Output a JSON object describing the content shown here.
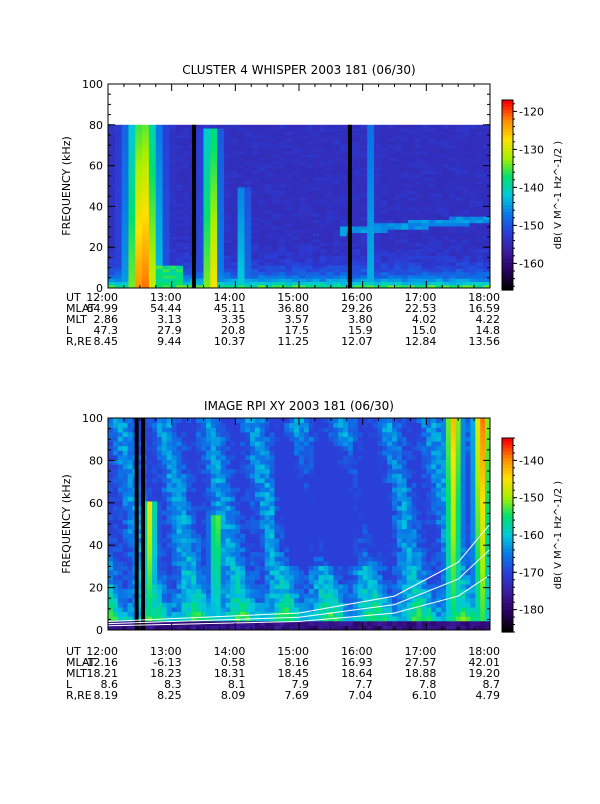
{
  "colormap": [
    "#000000",
    "#2a0060",
    "#3a1c9c",
    "#2a3ed8",
    "#0a78e8",
    "#00c8dc",
    "#00e070",
    "#a8f000",
    "#ffe000",
    "#ff8c00",
    "#ff0000"
  ],
  "chart_data": [
    {
      "type": "heatmap",
      "title": "CLUSTER 4 WHISPER 2003 181 (06/30)",
      "ylabel": "FREQUENCY (kHz)",
      "ylim": [
        0,
        100
      ],
      "yticks": [
        0,
        20,
        40,
        60,
        80,
        100
      ],
      "y_data_max": 80,
      "xlim": [
        12,
        18
      ],
      "colorbar": {
        "label": "dB( V M^-1 Hz^-1/2 )",
        "range": [
          -167,
          -117
        ],
        "ticks": [
          -120,
          -130,
          -140,
          -150,
          -160
        ]
      },
      "data_gaps_hours": [
        13.35,
        15.8
      ],
      "emission_bursts": [
        {
          "start_h": 12.3,
          "end_h": 12.8,
          "top_khz": 80,
          "peak_db": -120
        },
        {
          "start_h": 13.5,
          "end_h": 13.75,
          "top_khz": 78,
          "peak_db": -125
        },
        {
          "start_h": 14.05,
          "end_h": 14.2,
          "top_khz": 50,
          "peak_db": -138
        },
        {
          "start_h": 16.1,
          "end_h": 16.2,
          "top_khz": 80,
          "peak_db": -140
        }
      ],
      "ephemeris": {
        "rows": [
          "UT",
          "MLAT",
          "MLT",
          "L",
          "R,RE"
        ],
        "columns": [
          [
            "12:00",
            "64.99",
            "2.86",
            "47.3",
            "8.45"
          ],
          [
            "13:00",
            "54.44",
            "3.13",
            "27.9",
            "9.44"
          ],
          [
            "14:00",
            "45.11",
            "3.35",
            "20.8",
            "10.37"
          ],
          [
            "15:00",
            "36.80",
            "3.57",
            "17.5",
            "11.25"
          ],
          [
            "16:00",
            "29.26",
            "3.80",
            "15.9",
            "12.07"
          ],
          [
            "17:00",
            "22.53",
            "4.02",
            "15.0",
            "12.84"
          ],
          [
            "18:00",
            "16.59",
            "4.22",
            "14.8",
            "13.56"
          ]
        ]
      }
    },
    {
      "type": "heatmap",
      "title": "IMAGE RPI XY 2003 181 (06/30)",
      "ylabel": "FREQUENCY (kHz)",
      "ylim": [
        0,
        100
      ],
      "yticks": [
        0,
        20,
        40,
        60,
        80,
        100
      ],
      "xlim": [
        12,
        18
      ],
      "colorbar": {
        "label": "dB( V M^-1 Hz^-1/2 )",
        "range": [
          -186,
          -134
        ],
        "ticks": [
          -140,
          -150,
          -160,
          -170,
          -180
        ]
      },
      "data_gaps_hours": [
        12.45,
        12.55
      ],
      "emission_bursts": [
        {
          "start_h": 12.55,
          "end_h": 12.75,
          "top_khz": 60,
          "peak_db": -145
        },
        {
          "start_h": 13.6,
          "end_h": 13.8,
          "top_khz": 55,
          "peak_db": -150
        },
        {
          "start_h": 17.3,
          "end_h": 17.55,
          "top_khz": 100,
          "peak_db": -142
        },
        {
          "start_h": 17.75,
          "end_h": 18.0,
          "top_khz": 100,
          "peak_db": -138
        }
      ],
      "overlay_curves": [
        {
          "points": [
            [
              12,
              2
            ],
            [
              15,
              4
            ],
            [
              16.5,
              8
            ],
            [
              17.5,
              16
            ],
            [
              18,
              26
            ]
          ]
        },
        {
          "points": [
            [
              12,
              3
            ],
            [
              15,
              6
            ],
            [
              16.5,
              12
            ],
            [
              17.5,
              24
            ],
            [
              18,
              38
            ]
          ]
        },
        {
          "points": [
            [
              12,
              4
            ],
            [
              15,
              8
            ],
            [
              16.5,
              16
            ],
            [
              17.5,
              32
            ],
            [
              18,
              50
            ]
          ]
        }
      ],
      "ephemeris": {
        "rows": [
          "UT",
          "MLAT",
          "MLT",
          "L",
          "R,RE"
        ],
        "columns": [
          [
            "12:00",
            "-12.16",
            "18.21",
            "8.6",
            "8.19"
          ],
          [
            "13:00",
            "-6.13",
            "18.23",
            "8.3",
            "8.25"
          ],
          [
            "14:00",
            "0.58",
            "18.31",
            "8.1",
            "8.09"
          ],
          [
            "15:00",
            "8.16",
            "18.45",
            "7.9",
            "7.69"
          ],
          [
            "16:00",
            "16.93",
            "18.64",
            "7.7",
            "7.04"
          ],
          [
            "17:00",
            "27.57",
            "18.88",
            "7.8",
            "6.10"
          ],
          [
            "18:00",
            "42.01",
            "19.20",
            "8.7",
            "4.79"
          ]
        ]
      }
    }
  ]
}
